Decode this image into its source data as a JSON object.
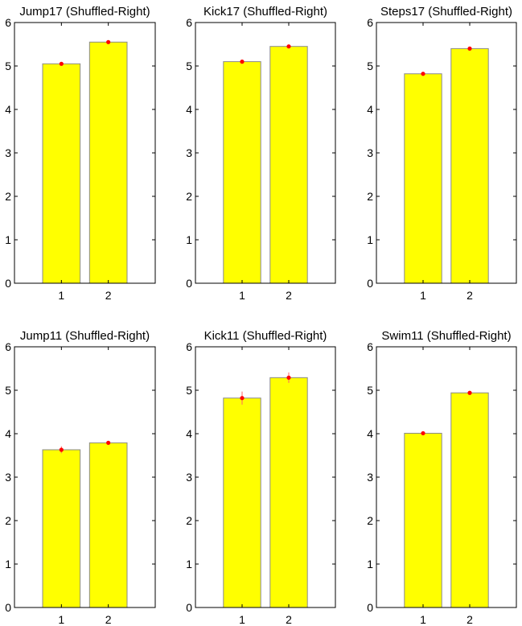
{
  "chart_data": [
    {
      "type": "bar",
      "title": "Jump17 (Shuffled-Right)",
      "categories": [
        "1",
        "2"
      ],
      "values": [
        5.05,
        5.55
      ],
      "error": [
        0.02,
        0.02
      ],
      "ylim": [
        0,
        6
      ],
      "yticks": [
        0,
        1,
        2,
        3,
        4,
        5,
        6
      ],
      "grid": false
    },
    {
      "type": "bar",
      "title": "Kick17 (Shuffled-Right)",
      "categories": [
        "1",
        "2"
      ],
      "values": [
        5.1,
        5.45
      ],
      "error": [
        0.03,
        0.02
      ],
      "ylim": [
        0,
        6
      ],
      "yticks": [
        0,
        1,
        2,
        3,
        4,
        5,
        6
      ],
      "grid": false
    },
    {
      "type": "bar",
      "title": "Steps17 (Shuffled-Right)",
      "categories": [
        "1",
        "2"
      ],
      "values": [
        4.82,
        5.4
      ],
      "error": [
        0.02,
        0.02
      ],
      "ylim": [
        0,
        6
      ],
      "yticks": [
        0,
        1,
        2,
        3,
        4,
        5,
        6
      ],
      "grid": false
    },
    {
      "type": "bar",
      "title": "Jump11 (Shuffled-Right)",
      "categories": [
        "1",
        "2"
      ],
      "values": [
        3.63,
        3.79
      ],
      "error": [
        0.08,
        0.03
      ],
      "ylim": [
        0,
        6
      ],
      "yticks": [
        0,
        1,
        2,
        3,
        4,
        5,
        6
      ],
      "grid": false
    },
    {
      "type": "bar",
      "title": "Kick11 (Shuffled-Right)",
      "categories": [
        "1",
        "2"
      ],
      "values": [
        4.82,
        5.29
      ],
      "error": [
        0.15,
        0.12
      ],
      "ylim": [
        0,
        6
      ],
      "yticks": [
        0,
        1,
        2,
        3,
        4,
        5,
        6
      ],
      "grid": false
    },
    {
      "type": "bar",
      "title": "Swim11 (Shuffled-Right)",
      "categories": [
        "1",
        "2"
      ],
      "values": [
        4.01,
        4.94
      ],
      "error": [
        0.02,
        0.02
      ],
      "ylim": [
        0,
        6
      ],
      "yticks": [
        0,
        1,
        2,
        3,
        4,
        5,
        6
      ],
      "grid": false
    }
  ],
  "colors": {
    "bar_fill": "#ffff00",
    "bar_edge": "#8a8a8a",
    "marker": "#ff0000",
    "error_bar": "#ff6666",
    "axis": "#000000"
  }
}
